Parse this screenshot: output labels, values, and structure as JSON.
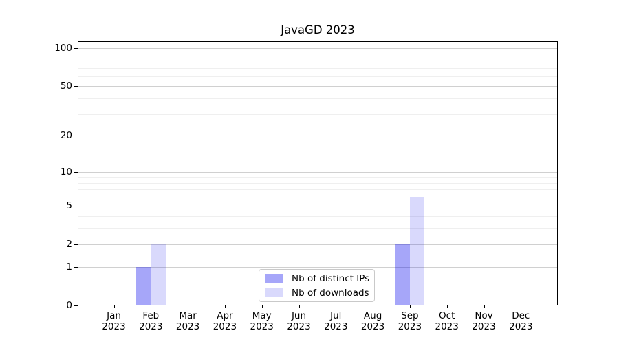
{
  "chart_data": {
    "type": "bar",
    "title": "JavaGD 2023",
    "xlabel": "",
    "ylabel": "",
    "categories": [
      "Jan 2023",
      "Feb 2023",
      "Mar 2023",
      "Apr 2023",
      "May 2023",
      "Jun 2023",
      "Jul 2023",
      "Aug 2023",
      "Sep 2023",
      "Oct 2023",
      "Nov 2023",
      "Dec 2023"
    ],
    "series": [
      {
        "name": "Nb of distinct IPs",
        "color": "#0000EE59",
        "values": [
          0,
          1,
          0,
          0,
          0,
          0,
          0,
          0,
          2,
          0,
          0,
          0
        ]
      },
      {
        "name": "Nb of downloads",
        "color": "#0000EE26",
        "values": [
          0,
          2,
          0,
          0,
          0,
          0,
          0,
          0,
          6,
          0,
          0,
          0
        ]
      }
    ],
    "yscale": "log1p",
    "ylim": [
      0,
      113
    ],
    "y_major_ticks": [
      0,
      1,
      2,
      5,
      10,
      20,
      50,
      100
    ],
    "y_minor_gridlines": [
      3,
      4,
      6,
      7,
      8,
      9,
      30,
      40,
      60,
      70,
      80,
      90
    ],
    "grid": "horizontal major and minor gridlines",
    "legend_position": "lower center inside plot"
  },
  "colors": {
    "background": "#ffffff",
    "axis": "#000000",
    "text": "#000000",
    "major_grid": "#d0d0d0",
    "minor_grid": "#efefef",
    "legend_border": "#c9c9c9",
    "bar_distinct_ips": "#0000EE59",
    "bar_downloads": "#0000EE26"
  }
}
